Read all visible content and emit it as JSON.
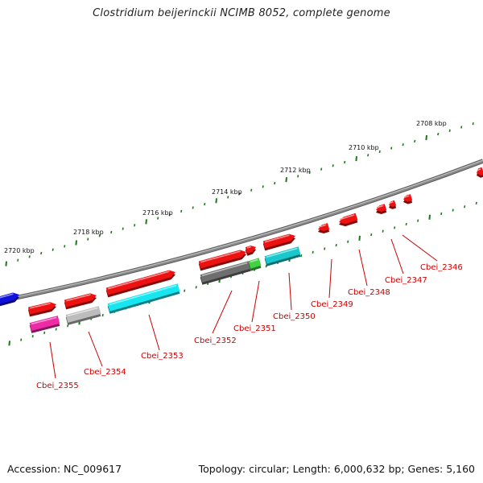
{
  "title": "Clostridium beijerinckii NCIMB 8052, complete genome",
  "accession": "Accession: NC_009617",
  "topology": "Topology: circular; Length: 6,000,632 bp; Genes: 5,160",
  "scale_labels": [
    "2720 kbp",
    "2718 kbp",
    "2716 kbp",
    "2714 kbp",
    "2712 kbp",
    "2710 kbp",
    "2708 kbp"
  ],
  "gene_labels": [
    "Cbei_2355",
    "Cbei_2354",
    "Cbei_2353",
    "Cbei_2352",
    "Cbei_2351",
    "Cbei_2350",
    "Cbei_2349",
    "Cbei_2348",
    "Cbei_2347",
    "Cbei_2346"
  ],
  "colors": {
    "backbone": "#8a8a8a",
    "tick_green": "#1a7a1a",
    "label_red": "#cc0000",
    "gene_red": "#ee1111",
    "gene_magenta": "#ee2aa5",
    "gene_silver": "#bdbdbd",
    "gene_cyan": "#16e6f0",
    "gene_teal": "#18c8cc",
    "gene_darkgray": "#6e6e6e",
    "gene_green": "#44d044",
    "gene_blue": "#1111dd"
  }
}
